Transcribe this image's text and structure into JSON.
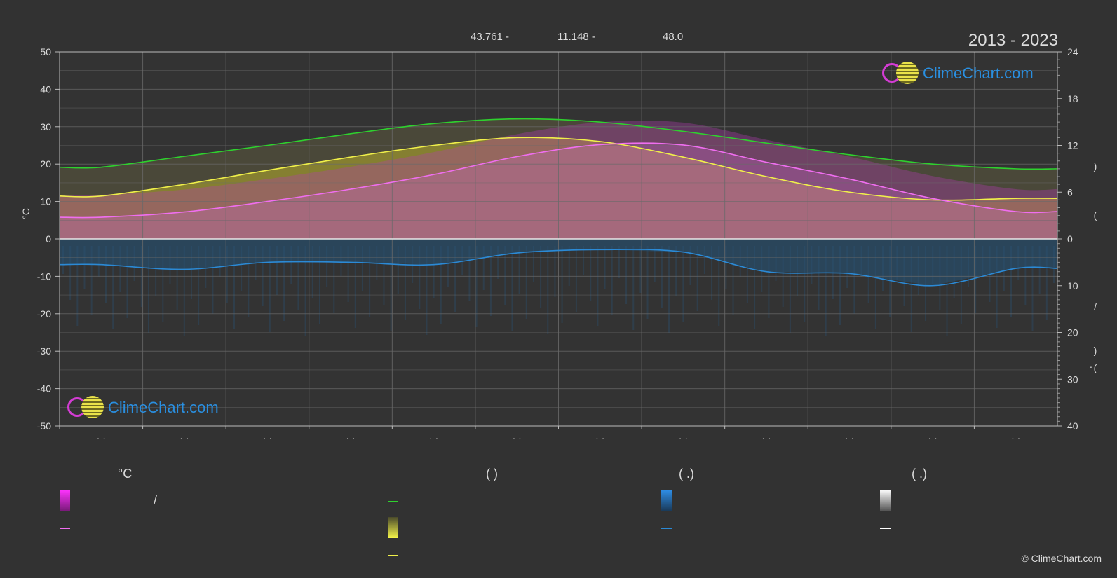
{
  "header": {
    "coords_lat": "43.761 -",
    "coords_lon": "11.148 -",
    "elevation": "48.0",
    "period": "2013 - 2023"
  },
  "brand": {
    "name": "ClimeChart.com",
    "copyright": "© ClimeChart.com"
  },
  "legend": {
    "temp_unit": "°C",
    "temp_slash": "/",
    "sun_header": "(          )",
    "rain_header": "(   .)",
    "snow_header": "(   .)"
  },
  "chart_data": {
    "type": "area",
    "n_points": 12,
    "left_axis": {
      "label": "°C",
      "ylim": [
        -50,
        50
      ],
      "ticks": [
        "50",
        "40",
        "30",
        "20",
        "10",
        "0",
        "-10",
        "-20",
        "-30",
        "-40",
        "-50"
      ]
    },
    "right_axis_hours": {
      "ylim": [
        0,
        24
      ],
      "ticks": [
        "24",
        "18",
        "12",
        "6",
        "0"
      ],
      "label_chars": [
        ")",
        "("
      ]
    },
    "right_axis_precip": {
      "ylim": [
        0,
        40
      ],
      "ticks": [
        "10",
        "20",
        "30",
        "40"
      ],
      "label_chars": [
        "/",
        ")",
        "·",
        "("
      ]
    },
    "x_tick_labels": [
      "· ·",
      "· ·",
      "· ·",
      "· ·",
      "· ·",
      "· ·",
      "· ·",
      "· ·",
      "· ·",
      "· ·",
      "· ·",
      "· ·"
    ],
    "grid": true,
    "series": [
      {
        "key": "daylight",
        "values": [
          9.2,
          10.6,
          12.0,
          13.5,
          14.8,
          15.4,
          15.0,
          13.8,
          12.3,
          10.8,
          9.6,
          9.0
        ],
        "color": "#2ed12e"
      },
      {
        "key": "sunshine",
        "values": [
          5.5,
          7.0,
          8.8,
          10.5,
          12.0,
          13.0,
          12.5,
          10.5,
          8.0,
          6.0,
          5.0,
          5.2
        ],
        "color": "#f0f04a"
      },
      {
        "key": "temp_mean",
        "values": [
          5.8,
          7.2,
          10.0,
          13.3,
          17.2,
          22.0,
          25.2,
          25.1,
          20.5,
          16.0,
          10.8,
          7.3
        ],
        "color": "#f06ef0"
      },
      {
        "key": "precip",
        "values": [
          5.5,
          6.5,
          5.0,
          5.0,
          5.5,
          3.0,
          2.3,
          2.8,
          7.0,
          7.4,
          10.0,
          6.3
        ],
        "color": "#2b8ad6"
      }
    ],
    "colors": {
      "temp_band": "#b53cb5",
      "sunshine_area": "#9a9a2e",
      "precip_area": "#1e5a8a",
      "snow": "#d8d8d8"
    }
  }
}
